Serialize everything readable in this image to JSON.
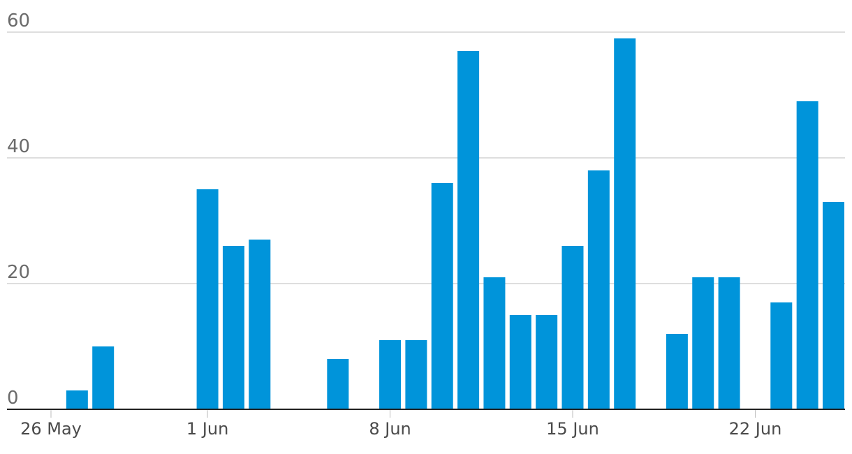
{
  "chart_data": {
    "type": "bar",
    "title": "",
    "xlabel": "",
    "ylabel": "",
    "ylim": [
      0,
      60
    ],
    "yticks": [
      0,
      20,
      40,
      60
    ],
    "grid": true,
    "bar_color": "#0094da",
    "categories": [
      "26 May",
      "27 May",
      "28 May",
      "29 May",
      "30 May",
      "31 May",
      "1 Jun",
      "2 Jun",
      "3 Jun",
      "4 Jun",
      "5 Jun",
      "6 Jun",
      "7 Jun",
      "8 Jun",
      "9 Jun",
      "10 Jun",
      "11 Jun",
      "12 Jun",
      "13 Jun",
      "14 Jun",
      "15 Jun",
      "16 Jun",
      "17 Jun",
      "18 Jun",
      "19 Jun",
      "20 Jun",
      "21 Jun",
      "22 Jun",
      "23 Jun",
      "24 Jun",
      "25 Jun"
    ],
    "values": [
      0,
      3,
      10,
      0,
      0,
      0,
      35,
      26,
      27,
      0,
      0,
      8,
      0,
      11,
      11,
      36,
      57,
      21,
      15,
      15,
      26,
      38,
      59,
      0,
      12,
      21,
      21,
      0,
      17,
      49,
      33
    ],
    "xtick_labels": [
      "26 May",
      "1 Jun",
      "8 Jun",
      "15 Jun",
      "22 Jun"
    ]
  }
}
